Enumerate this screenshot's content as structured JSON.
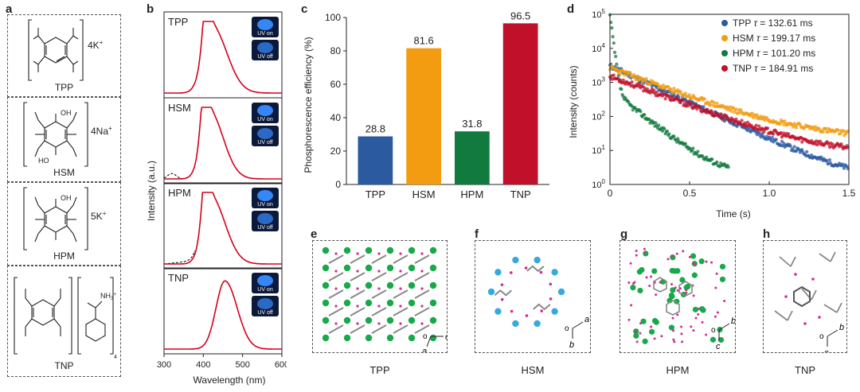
{
  "panel_labels": {
    "a": "a",
    "b": "b",
    "c": "c",
    "d": "d",
    "e": "e",
    "f": "f",
    "g": "g",
    "h": "h"
  },
  "panel_a": {
    "molecules": [
      {
        "name": "TPP",
        "counterion": "4K",
        "charge": "+"
      },
      {
        "name": "HSM",
        "counterion": "4Na",
        "charge": "+"
      },
      {
        "name": "HPM",
        "counterion": "5K",
        "charge": "+"
      },
      {
        "name": "TNP",
        "counterion": "",
        "charge": ""
      }
    ],
    "tnp_amine": "NH",
    "tnp_amine_sub": "3",
    "tnp_amine_charge": "+",
    "tnp_bracket_sub": "4",
    "oh_label": "OH",
    "ho_label": "HO"
  },
  "panel_b": {
    "ylabel": "Intensity (a.u.)",
    "xlabel": "Wavelength (nm)",
    "xticks": [
      "300",
      "400",
      "500",
      "600"
    ],
    "uv_on": "UV on",
    "uv_off": "UV off",
    "colors": {
      "fit": "#d6001c",
      "measured": "#000000",
      "uv_bg": "#0b1a3a",
      "uv_glow": "#3a8cff"
    }
  },
  "chart_data": [
    {
      "type": "bar",
      "title": "",
      "categories": [
        "TPP",
        "HSM",
        "HPM",
        "TNP"
      ],
      "values": [
        28.8,
        81.6,
        31.8,
        96.5
      ],
      "value_labels": [
        "28.8",
        "81.6",
        "31.8",
        "96.5"
      ],
      "colors": [
        "#2c5aa0",
        "#f39c12",
        "#117a3e",
        "#c0102a"
      ],
      "ylabel": "Phosphorescence efficiency (%)",
      "xlabel": "",
      "ylim": [
        0,
        100
      ],
      "yticks": [
        "0",
        "20",
        "40",
        "60",
        "80",
        "100"
      ]
    },
    {
      "type": "scatter",
      "ylabel": "Intensity (counts)",
      "xlabel": "Time (s)",
      "xlim": [
        0,
        1.5
      ],
      "xticks": [
        "0",
        "0.5",
        "1.0",
        "1.5"
      ],
      "yscale": "log",
      "ylim": [
        1,
        100000
      ],
      "ytick_base": "10",
      "ytick_exps": [
        "0",
        "1",
        "2",
        "3",
        "4",
        "5"
      ],
      "legend_placement": "top-right",
      "tau_symbol": "τ",
      "series": [
        {
          "name": "TPP",
          "tau": "132.61 ms",
          "color": "#2c5aa0"
        },
        {
          "name": "HSM",
          "tau": "199.17 ms",
          "color": "#f39c12"
        },
        {
          "name": "HPM",
          "tau": "101.20 ms",
          "color": "#117a3e"
        },
        {
          "name": "TNP",
          "tau": "184.91 ms",
          "color": "#c0102a"
        }
      ]
    }
  ],
  "crystal_panels": {
    "captions": [
      "TPP",
      "HSM",
      "HPM",
      "TNP"
    ],
    "axes": [
      {
        "labels": [
          "c",
          "a"
        ]
      },
      {
        "labels": [
          "a",
          "b"
        ]
      },
      {
        "labels": [
          "b",
          "c"
        ]
      },
      {
        "labels": [
          "b",
          "c"
        ]
      }
    ],
    "origin_label": "o",
    "colors": {
      "green_atom": "#19a94b",
      "blue_atom": "#36a9e0",
      "magenta_atom": "#d12d8f",
      "bond": "#888888"
    }
  }
}
